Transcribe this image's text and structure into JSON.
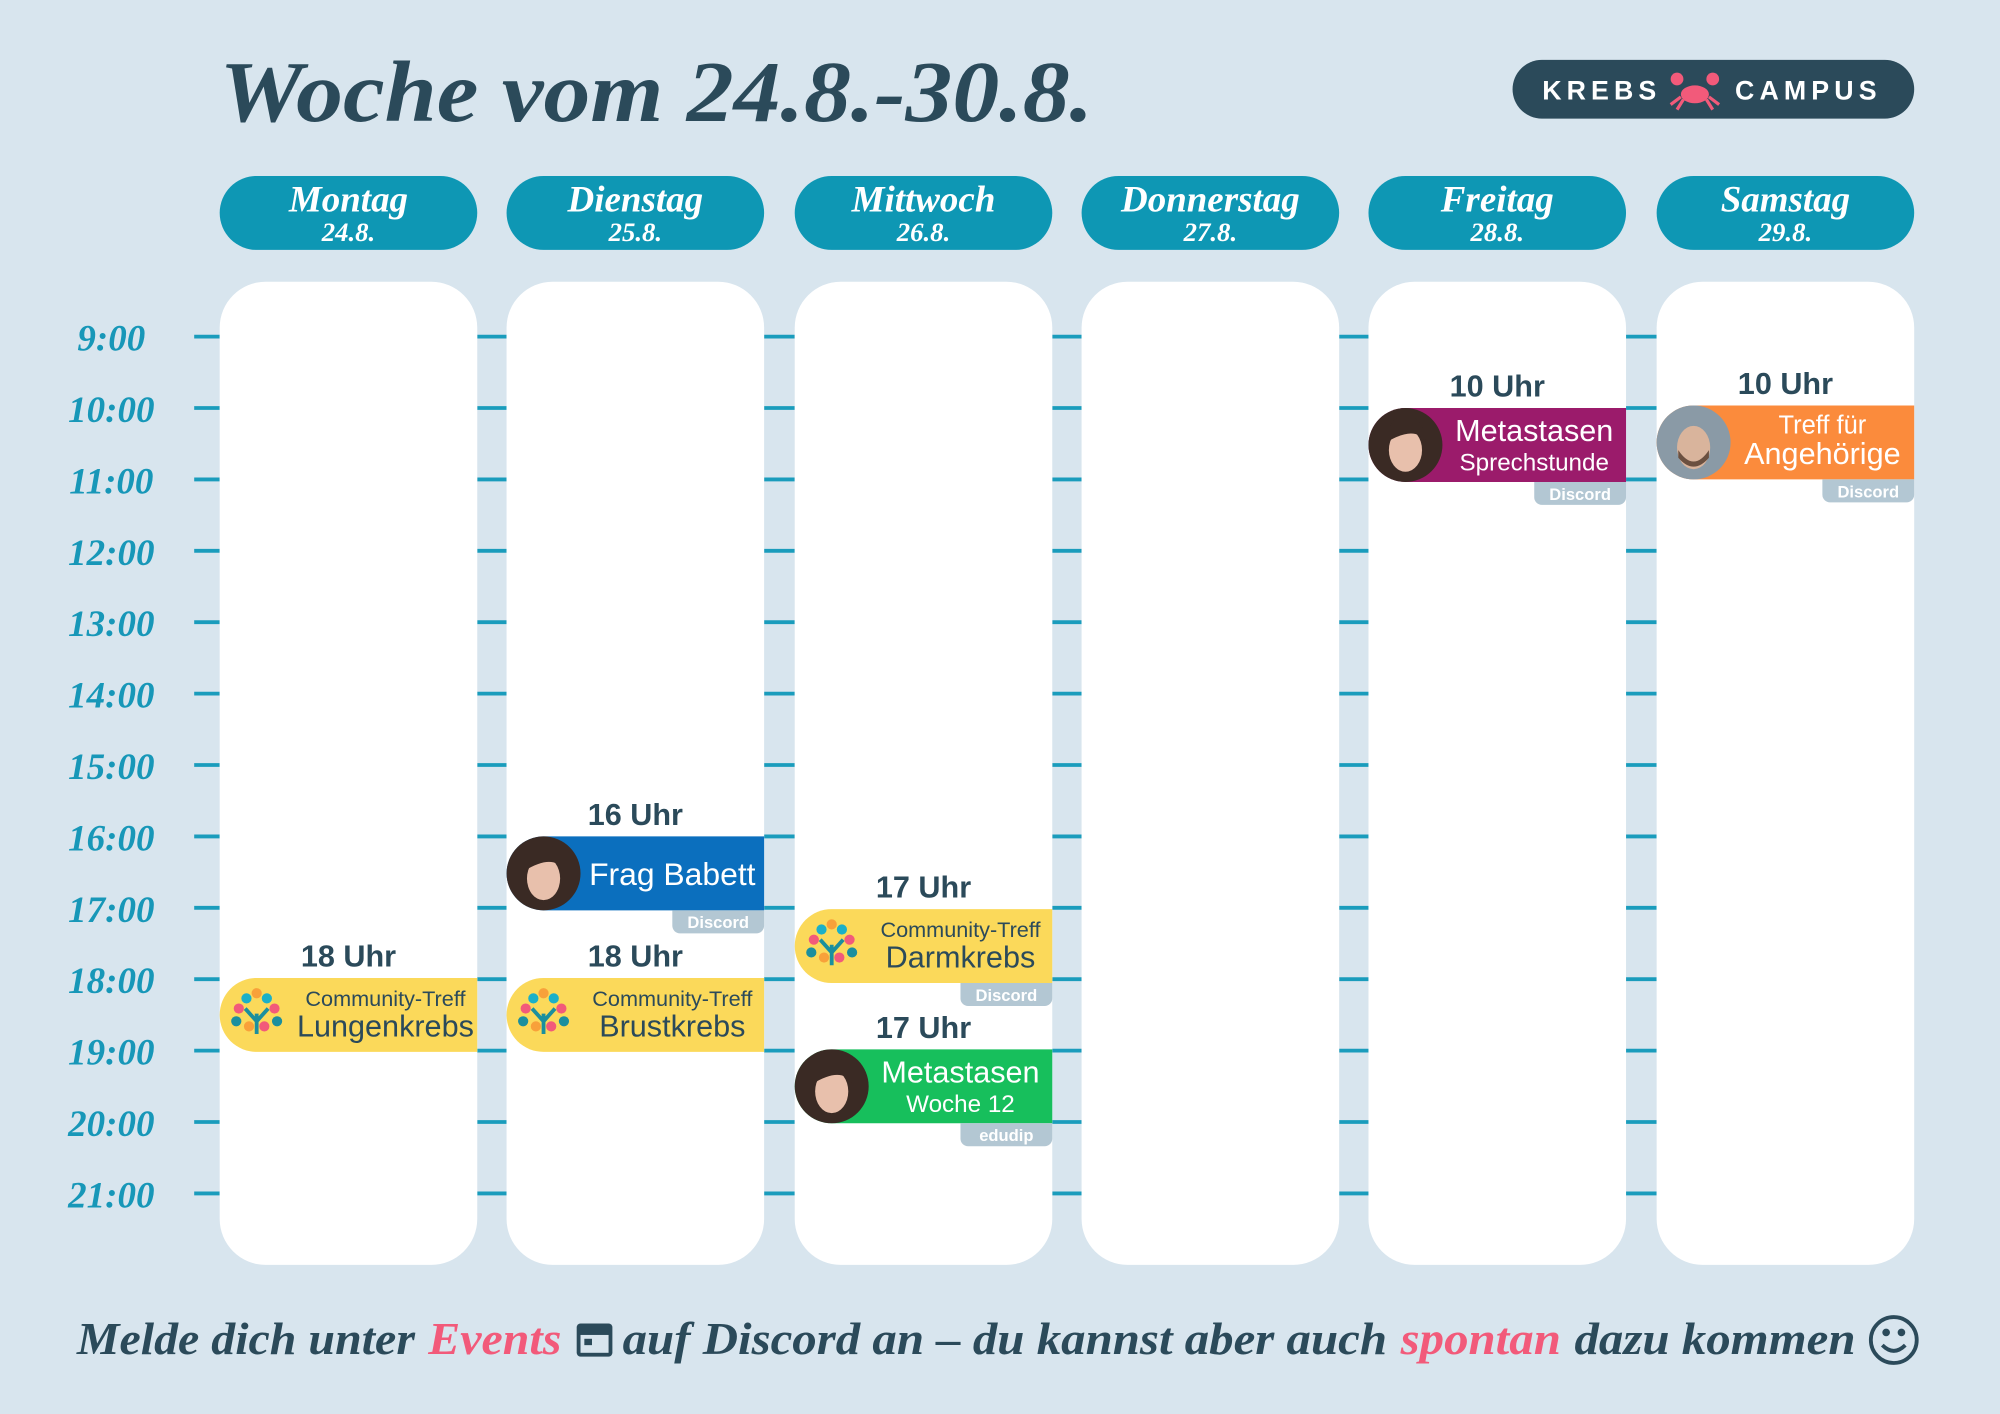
{
  "header": {
    "title": "Woche vom 24.8.-30.8.",
    "logo": {
      "left": "KREBS",
      "right": "CAMPUS"
    }
  },
  "days": [
    {
      "name": "Montag",
      "date": "24.8.",
      "events": [
        {
          "time": "18 Uhr",
          "line1": "Community-Treff",
          "line2": "Lungenkrebs",
          "color": "#fbd95a"
        }
      ]
    },
    {
      "name": "Dienstag",
      "date": "25.8.",
      "events": [
        {
          "time": "16 Uhr",
          "line1": "Frag Babett",
          "color": "#0b6fbe",
          "platform": "Discord"
        },
        {
          "time": "18 Uhr",
          "line1": "Community-Treff",
          "line2": "Brustkrebs",
          "color": "#fbd95a"
        }
      ]
    },
    {
      "name": "Mittwoch",
      "date": "26.8.",
      "events": [
        {
          "time": "17 Uhr",
          "line1": "Community-Treff",
          "line2": "Darmkrebs",
          "color": "#fbd95a",
          "platform": "Discord"
        },
        {
          "time": "17 Uhr",
          "line1": "Metastasen",
          "line2": "Woche 12",
          "color": "#17bf5c",
          "platform": "edudip"
        }
      ]
    },
    {
      "name": "Donnerstag",
      "date": "27.8.",
      "events": []
    },
    {
      "name": "Freitag",
      "date": "28.8.",
      "events": [
        {
          "time": "10 Uhr",
          "line1": "Metastasen",
          "line2": "Sprechstunde",
          "color": "#9b1b6b",
          "platform": "Discord"
        }
      ]
    },
    {
      "name": "Samstag",
      "date": "29.8.",
      "events": [
        {
          "time": "10 Uhr",
          "line1": "Treff für",
          "line2": "Angehörige",
          "color": "#fb8b3c",
          "platform": "Discord"
        }
      ]
    }
  ],
  "times": [
    "9:00",
    "10:00",
    "11:00",
    "12:00",
    "13:00",
    "14:00",
    "15:00",
    "16:00",
    "17:00",
    "18:00",
    "19:00",
    "20:00",
    "21:00"
  ],
  "footer": {
    "part1": "Melde dich unter",
    "highlight1": "Events",
    "part2": "auf Discord an – du kannst aber auch",
    "highlight2": "spontan",
    "part3": "dazu kommen"
  }
}
